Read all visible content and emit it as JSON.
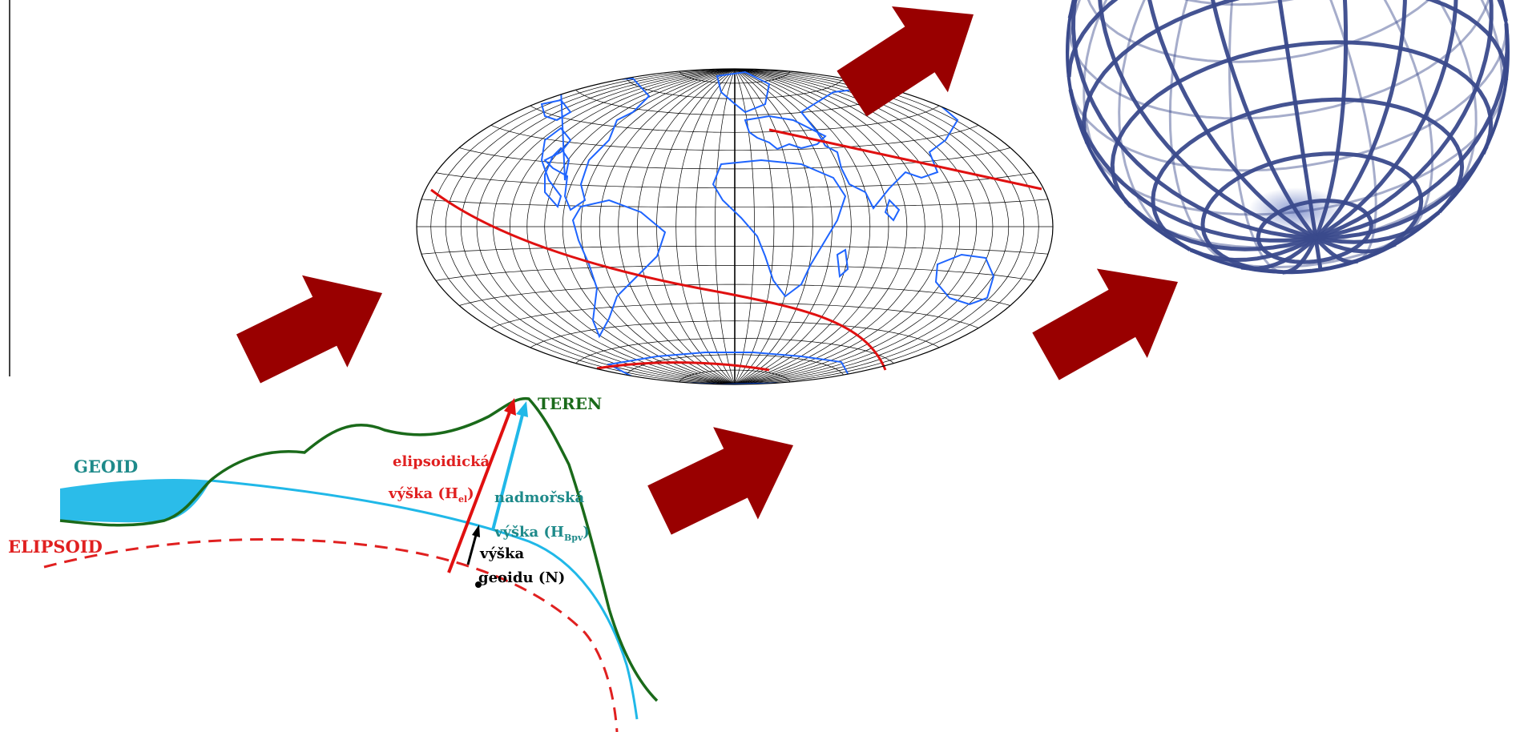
{
  "colors": {
    "arrow": "#990000",
    "graticule": "#000000",
    "coastline": "#1e64ff",
    "red_line": "#e01010",
    "globe": "#3a4a8c",
    "terrain": "#1a6a1a",
    "geoid": "#20b8e8",
    "ellipsoid": "#e02020",
    "geoid_label": "#1e8a8a",
    "label_black": "#000000"
  },
  "icons": [
    "arrow-icon"
  ],
  "labels": {
    "terrain": "TEREN",
    "geoid": "GEOID",
    "ellipsoid": "ELIPSOID",
    "ellipsoidal_height_line1": "elipsoidická",
    "ellipsoidal_height_line2_pre": "výška (H",
    "ellipsoidal_height_sub": "el",
    "ellipsoidal_height_post": ")",
    "orthometric_line1": "nadmořská",
    "orthometric_line2_pre": "výška (H",
    "orthometric_sub": "Bpv",
    "orthometric_post": ")",
    "geoid_height_line1": "výška",
    "geoid_height_line2": "geoidu (N)"
  }
}
